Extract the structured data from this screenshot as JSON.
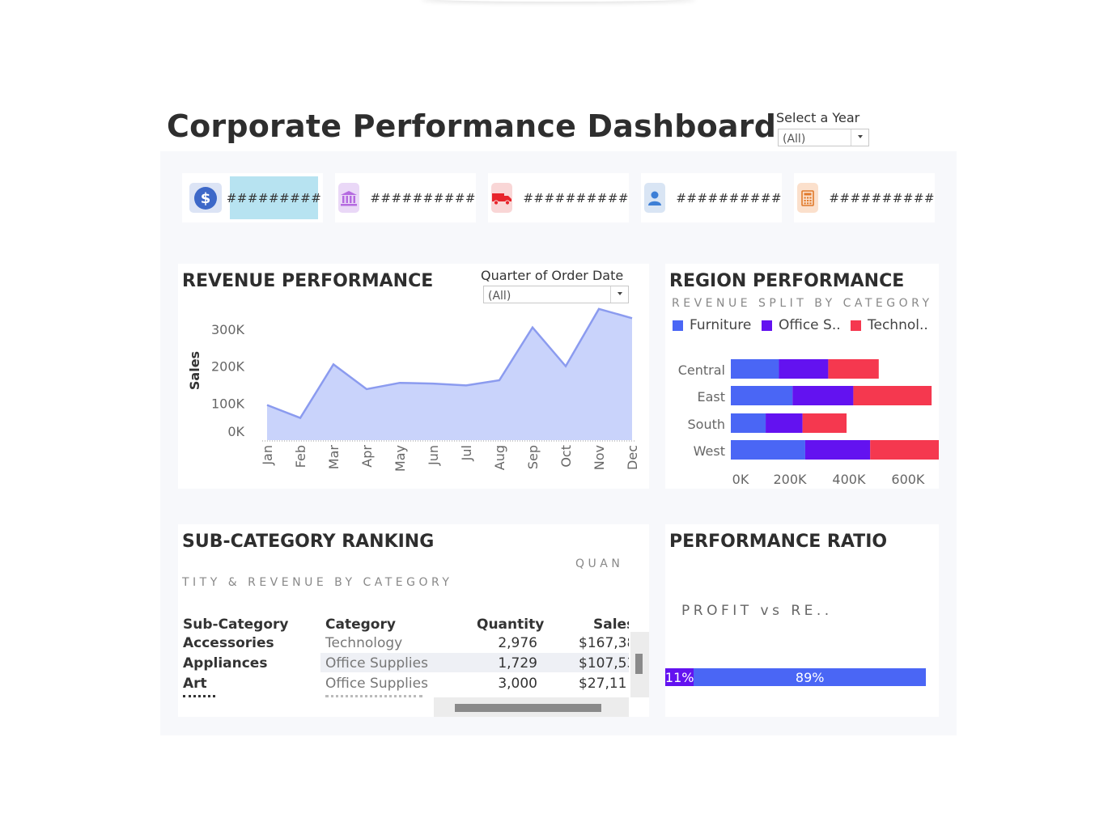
{
  "title": "Corporate Performance Dashboard",
  "year_filter": {
    "label": "Select a Year",
    "value": "(All)"
  },
  "kpis": [
    {
      "icon": "dollar-icon",
      "value": "#########"
    },
    {
      "icon": "bank-icon",
      "value": "##########"
    },
    {
      "icon": "truck-icon",
      "value": "##########"
    },
    {
      "icon": "user-icon",
      "value": "##########"
    },
    {
      "icon": "calculator-icon",
      "value": "##########"
    }
  ],
  "revenue": {
    "title": "REVENUE PERFORMANCE",
    "quarter_filter": {
      "label": "Quarter of Order Date",
      "value": "(All)"
    },
    "chart_data": {
      "type": "area",
      "x": [
        "Jan",
        "Feb",
        "Mar",
        "Apr",
        "May",
        "Jun",
        "Jul",
        "Aug",
        "Sep",
        "Oct",
        "Nov",
        "Dec"
      ],
      "series": [
        {
          "values": [
            95000,
            60000,
            205000,
            138000,
            155000,
            153000,
            148000,
            162000,
            305000,
            200000,
            355000,
            330000
          ]
        }
      ],
      "ylabel": "Sales",
      "yticks": [
        "0K",
        "100K",
        "200K",
        "300K"
      ],
      "ylim": [
        0,
        370000
      ],
      "color": "#c9d3fb",
      "line_color": "#8b9bef"
    }
  },
  "region": {
    "title": "REGION PERFORMANCE",
    "subtitle": "REVENUE SPLIT BY CATEGORY",
    "legend": [
      {
        "name": "Furniture",
        "color": "#4a66f5"
      },
      {
        "name": "Office S..",
        "color": "#6312f0"
      },
      {
        "name": "Technol..",
        "color": "#f5384f"
      }
    ],
    "chart_data": {
      "type": "bar",
      "orientation": "horizontal",
      "stacked": true,
      "categories": [
        "Central",
        "East",
        "South",
        "West"
      ],
      "series": [
        {
          "name": "Furniture",
          "values": [
            163000,
            209000,
            118000,
            252000
          ]
        },
        {
          "name": "Office Supplies",
          "values": [
            167000,
            206000,
            125000,
            220000
          ]
        },
        {
          "name": "Technology",
          "values": [
            171000,
            265000,
            149000,
            251000
          ]
        }
      ],
      "xticks": [
        "0K",
        "200K",
        "400K",
        "600K"
      ],
      "xlim": [
        0,
        740000
      ]
    }
  },
  "subcat": {
    "title": "SUB-CATEGORY RANKING",
    "subtitle_line1": "QUAN",
    "subtitle_line2": "TITY & REVENUE BY CATEGORY",
    "columns": [
      "Sub-Category",
      "Category",
      "Quantity",
      "Sales"
    ],
    "rows": [
      {
        "sub": "Accessories",
        "cat": "Technology",
        "qty": "2,976",
        "sales": "$167,38"
      },
      {
        "sub": "Appliances",
        "cat": "Office Supplies",
        "qty": "1,729",
        "sales": "$107,53"
      },
      {
        "sub": "Art",
        "cat": "Office Supplies",
        "qty": "3,000",
        "sales": "$27,11"
      }
    ]
  },
  "ratio": {
    "title": "PERFORMANCE RATIO",
    "subtitle": "PROFIT vs RE..",
    "chart_data": {
      "type": "bar",
      "orientation": "horizontal",
      "stacked": true,
      "series": [
        {
          "name": "Profit",
          "value": 11,
          "label": "11%",
          "color": "#6312f0"
        },
        {
          "name": "Revenue",
          "value": 89,
          "label": "89%",
          "color": "#4a66f5"
        }
      ]
    }
  }
}
